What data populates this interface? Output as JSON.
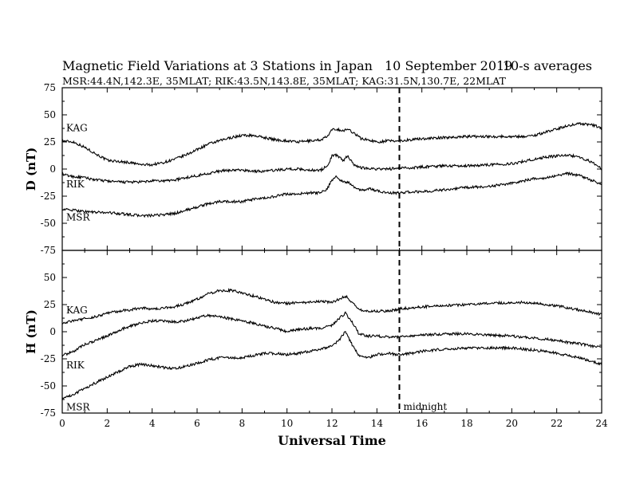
{
  "header": {
    "title": "Magnetic Field Variations at 3 Stations in Japan",
    "date": "10 September 2019",
    "averaging": "10-s averages",
    "subtitle": "MSR:44.4N,142.3E, 35MLAT;  RIK:43.5N,143.8E, 35MLAT;  KAG:31.5N,130.7E, 22MLAT"
  },
  "chart_data": [
    {
      "type": "line",
      "panel": "top",
      "ylabel": "D (nT)",
      "xlabel": "",
      "xlim": [
        0,
        24
      ],
      "ylim": [
        -75,
        75
      ],
      "xticks": [
        0,
        2,
        4,
        6,
        8,
        10,
        12,
        14,
        16,
        18,
        20,
        22,
        24
      ],
      "yticks": [
        75,
        50,
        25,
        0,
        -25,
        -50,
        -75
      ],
      "series": [
        {
          "name": "KAG",
          "x": [
            0,
            0.5,
            1,
            1.5,
            2,
            2.5,
            3,
            3.5,
            4,
            4.5,
            5,
            5.5,
            6,
            6.5,
            7,
            7.5,
            8,
            8.5,
            9,
            9.5,
            10,
            10.5,
            11,
            11.5,
            11.8,
            12.0,
            12.2,
            12.5,
            12.7,
            13.0,
            13.3,
            13.6,
            14,
            14.5,
            15,
            15.5,
            16,
            17,
            18,
            19,
            20,
            20.5,
            21,
            21.5,
            22,
            22.5,
            23,
            23.5,
            24
          ],
          "values": [
            26,
            25,
            20,
            14,
            8,
            7,
            6,
            4,
            4,
            6,
            9,
            13,
            18,
            23,
            26,
            29,
            31,
            31,
            29,
            27,
            26,
            25,
            26,
            27,
            30,
            36,
            37,
            35,
            37,
            33,
            28,
            27,
            25,
            26,
            26,
            27,
            28,
            29,
            30,
            30,
            30,
            30,
            31,
            34,
            37,
            40,
            42,
            41,
            38
          ]
        },
        {
          "name": "RIK",
          "x": [
            0,
            0.5,
            1,
            1.5,
            2,
            2.5,
            3,
            3.5,
            4,
            4.5,
            5,
            5.5,
            6,
            6.5,
            7,
            7.5,
            8,
            8.5,
            9,
            9.5,
            10,
            10.5,
            11,
            11.5,
            11.8,
            12.0,
            12.2,
            12.5,
            12.7,
            13.0,
            13.3,
            13.6,
            14,
            14.5,
            15,
            15.5,
            16,
            17,
            18,
            19,
            20,
            20.5,
            21,
            21.5,
            22,
            22.5,
            23,
            23.5,
            24
          ],
          "values": [
            -5,
            -7,
            -8,
            -10,
            -11,
            -12,
            -12,
            -12,
            -11,
            -11,
            -10,
            -8,
            -6,
            -4,
            -2,
            -1,
            -1,
            -2,
            -2,
            -1,
            0,
            0,
            -1,
            -1,
            3,
            12,
            13,
            8,
            12,
            4,
            1,
            1,
            0,
            0,
            1,
            1,
            2,
            3,
            3,
            4,
            5,
            7,
            9,
            11,
            12,
            13,
            11,
            7,
            0
          ]
        },
        {
          "name": "MSR",
          "x": [
            0,
            0.5,
            1,
            1.5,
            2,
            2.5,
            3,
            3.5,
            4,
            4.5,
            5,
            5.5,
            6,
            6.5,
            7,
            7.5,
            8,
            8.5,
            9,
            9.5,
            10,
            10.5,
            11,
            11.5,
            11.8,
            12.0,
            12.2,
            12.5,
            12.7,
            13.0,
            13.3,
            13.6,
            14,
            14.5,
            15,
            15.5,
            16,
            17,
            18,
            19,
            20,
            20.5,
            21,
            21.5,
            22,
            22.5,
            23,
            23.5,
            24
          ],
          "values": [
            -37,
            -38,
            -39,
            -40,
            -40,
            -41,
            -42,
            -43,
            -43,
            -42,
            -41,
            -38,
            -35,
            -32,
            -30,
            -30,
            -30,
            -28,
            -27,
            -25,
            -23,
            -23,
            -22,
            -22,
            -18,
            -10,
            -7,
            -12,
            -12,
            -17,
            -20,
            -18,
            -20,
            -22,
            -22,
            -21,
            -21,
            -19,
            -17,
            -16,
            -13,
            -11,
            -9,
            -8,
            -6,
            -4,
            -6,
            -10,
            -14
          ]
        }
      ]
    },
    {
      "type": "line",
      "panel": "bottom",
      "ylabel": "H (nT)",
      "xlabel": "Universal Time",
      "xlim": [
        0,
        24
      ],
      "ylim": [
        -75,
        75
      ],
      "xticks": [
        0,
        2,
        4,
        6,
        8,
        10,
        12,
        14,
        16,
        18,
        20,
        22,
        24
      ],
      "xticklabels": [
        "0",
        "2",
        "4",
        "6",
        "8",
        "10",
        "12",
        "14",
        "16",
        "18",
        "20",
        "22",
        "24"
      ],
      "yticks": [
        75,
        50,
        25,
        0,
        -25,
        -50,
        -75
      ],
      "annotation": {
        "x": 15,
        "text": "midnight"
      },
      "series": [
        {
          "name": "KAG",
          "x": [
            0,
            0.5,
            1,
            1.5,
            2,
            2.5,
            3,
            3.5,
            4,
            4.5,
            5,
            5.5,
            6,
            6.5,
            7,
            7.5,
            8,
            8.5,
            9,
            9.5,
            10,
            10.5,
            11,
            11.5,
            12.0,
            12.3,
            12.6,
            12.9,
            13.2,
            13.6,
            14,
            14.5,
            15,
            15.5,
            16,
            17,
            18,
            19,
            20,
            20.5,
            21,
            21.5,
            22,
            22.5,
            23,
            23.5,
            24
          ],
          "values": [
            8,
            10,
            12,
            14,
            17,
            19,
            20,
            22,
            21,
            22,
            23,
            26,
            30,
            35,
            38,
            38,
            36,
            33,
            30,
            27,
            26,
            27,
            27,
            28,
            27,
            30,
            33,
            27,
            20,
            19,
            19,
            19,
            21,
            22,
            23,
            24,
            25,
            26,
            27,
            27,
            26,
            25,
            24,
            22,
            20,
            18,
            16
          ]
        },
        {
          "name": "RIK",
          "x": [
            0,
            0.5,
            1,
            1.5,
            2,
            2.5,
            3,
            3.5,
            4,
            4.5,
            5,
            5.5,
            6,
            6.5,
            7,
            7.5,
            8,
            8.5,
            9,
            9.5,
            10,
            10.5,
            11,
            11.5,
            12.0,
            12.3,
            12.6,
            12.9,
            13.2,
            13.6,
            14,
            14.5,
            15,
            15.5,
            16,
            17,
            18,
            19,
            20,
            20.5,
            21,
            21.5,
            22,
            22.5,
            23,
            23.5,
            24
          ],
          "values": [
            -22,
            -18,
            -12,
            -8,
            -4,
            1,
            5,
            8,
            10,
            10,
            9,
            10,
            13,
            15,
            14,
            12,
            10,
            8,
            5,
            3,
            0,
            2,
            3,
            3,
            6,
            12,
            17,
            9,
            -2,
            -4,
            -4,
            -5,
            -5,
            -4,
            -3,
            -2,
            -2,
            -3,
            -4,
            -5,
            -6,
            -7,
            -8,
            -10,
            -11,
            -13,
            -15
          ]
        },
        {
          "name": "MSR",
          "x": [
            0,
            0.5,
            1,
            1.5,
            2,
            2.5,
            3,
            3.5,
            4,
            4.5,
            5,
            5.5,
            6,
            6.5,
            7,
            7.5,
            8,
            8.5,
            9,
            9.5,
            10,
            10.5,
            11,
            11.5,
            12.0,
            12.3,
            12.6,
            12.9,
            13.2,
            13.6,
            14,
            14.5,
            15,
            15.5,
            16,
            17,
            18,
            19,
            20,
            20.5,
            21,
            21.5,
            22,
            22.5,
            23,
            23.5,
            24
          ],
          "values": [
            -62,
            -58,
            -52,
            -47,
            -42,
            -37,
            -32,
            -30,
            -31,
            -33,
            -34,
            -32,
            -29,
            -26,
            -24,
            -24,
            -24,
            -22,
            -20,
            -20,
            -21,
            -20,
            -18,
            -16,
            -13,
            -8,
            0,
            -12,
            -22,
            -24,
            -21,
            -20,
            -21,
            -20,
            -18,
            -16,
            -15,
            -15,
            -15,
            -16,
            -17,
            -18,
            -20,
            -22,
            -24,
            -27,
            -30
          ]
        }
      ]
    }
  ]
}
